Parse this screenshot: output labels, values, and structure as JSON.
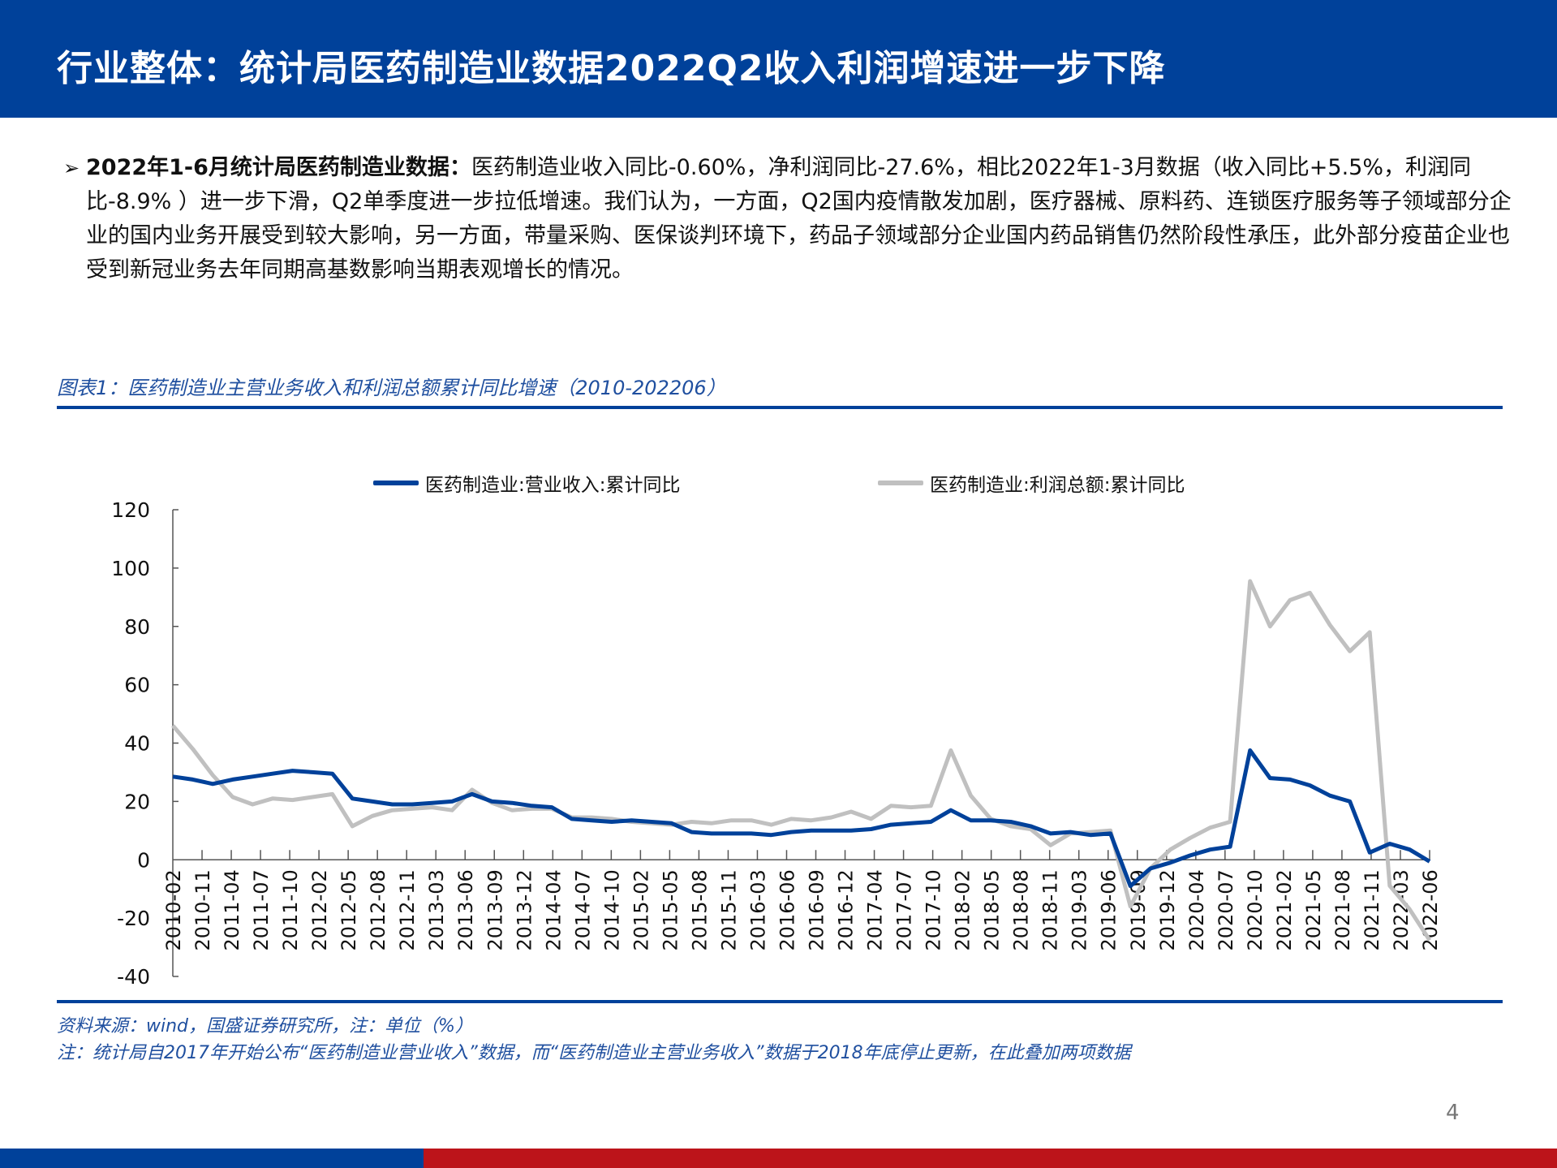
{
  "header": {
    "title": "行业整体：统计局医药制造业数据2022Q2收入利润增速进一步下降"
  },
  "bullet": {
    "marker": "➢",
    "bold_lead": "2022年1-6月统计局医药制造业数据：",
    "body": "医药制造业收入同比-0.60%，净利润同比-27.6%，相比2022年1-3月数据（收入同比+5.5%，利润同比-8.9% ）进一步下滑，Q2单季度进一步拉低增速。我们认为，一方面，Q2国内疫情散发加剧，医疗器械、原料药、连锁医疗服务等子领域部分企业的国内业务开展受到较大影响，另一方面，带量采购、医保谈判环境下，药品子领域部分企业国内药品销售仍然阶段性承压，此外部分疫苗企业也受到新冠业务去年同期高基数影响当期表观增长的情况。"
  },
  "figure": {
    "caption": "图表1：医药制造业主营业务收入和利润总额累计同比增速（2010-202206）",
    "source_line": "资料来源：wind，国盛证券研究所，注：单位（%）",
    "note_line": "注：统计局自2017年开始公布“医药制造业营业收入”数据，而“医药制造业主营业务收入”数据于2018年底停止更新，在此叠加两项数据"
  },
  "page_number": "4",
  "colors": {
    "brand_blue": "#00419a",
    "brand_red": "#bc141a",
    "revenue_line": "#00419a",
    "profit_line": "#c0c0c0"
  },
  "chart_data": {
    "type": "line",
    "title": "",
    "xlabel": "",
    "ylabel": "%",
    "ylim": [
      -40,
      120
    ],
    "yticks": [
      120,
      100,
      80,
      60,
      40,
      20,
      0,
      -20,
      -40
    ],
    "grid": false,
    "legend_position": "top",
    "x_tick_labels": [
      "2010-02",
      "2010-11",
      "2011-04",
      "2011-07",
      "2011-10",
      "2012-02",
      "2012-05",
      "2012-08",
      "2012-11",
      "2013-03",
      "2013-06",
      "2013-09",
      "2013-12",
      "2014-04",
      "2014-07",
      "2014-10",
      "2015-02",
      "2015-05",
      "2015-08",
      "2015-11",
      "2016-03",
      "2016-06",
      "2016-09",
      "2016-12",
      "2017-04",
      "2017-07",
      "2017-10",
      "2018-02",
      "2018-05",
      "2018-08",
      "2018-11",
      "2019-03",
      "2019-06",
      "2019-09",
      "2019-12",
      "2020-04",
      "2020-07",
      "2020-10",
      "2021-02",
      "2021-05",
      "2021-08",
      "2021-11",
      "2022-03",
      "2022-06"
    ],
    "series": [
      {
        "name": "医药制造业:营业收入:累计同比",
        "color": "#00419a",
        "values": [
          28.5,
          27.5,
          26.0,
          27.5,
          28.5,
          29.5,
          30.5,
          30.0,
          29.5,
          21.0,
          20.0,
          19.0,
          19.0,
          19.5,
          20.0,
          22.5,
          20.0,
          19.5,
          18.5,
          18.0,
          14.0,
          13.5,
          13.0,
          13.5,
          13.0,
          12.5,
          9.5,
          9.0,
          9.0,
          9.0,
          8.5,
          9.5,
          10.0,
          10.0,
          10.0,
          10.5,
          12.0,
          12.5,
          13.0,
          17.0,
          13.5,
          13.5,
          13.0,
          11.5,
          9.0,
          9.5,
          8.5,
          9.0,
          -9.0,
          -3.0,
          -1.0,
          1.5,
          3.5,
          4.5,
          37.5,
          28.0,
          27.5,
          25.5,
          22.0,
          20.0,
          2.5,
          5.5,
          3.5,
          -0.6
        ]
      },
      {
        "name": "医药制造业:利润总额:累计同比",
        "color": "#c0c0c0",
        "values": [
          46.0,
          38.0,
          29.0,
          21.5,
          19.0,
          21.0,
          20.5,
          21.5,
          22.5,
          11.5,
          15.0,
          17.0,
          17.5,
          18.0,
          17.0,
          24.0,
          19.5,
          17.0,
          17.5,
          17.5,
          14.5,
          14.5,
          14.0,
          13.0,
          12.5,
          12.0,
          13.0,
          12.5,
          13.5,
          13.5,
          12.0,
          14.0,
          13.5,
          14.5,
          16.5,
          14.0,
          18.5,
          18.0,
          18.5,
          37.5,
          22.0,
          14.0,
          11.5,
          10.5,
          5.0,
          9.0,
          9.5,
          10.0,
          -16.0,
          -3.0,
          3.5,
          7.5,
          11.0,
          13.0,
          95.5,
          80.0,
          89.0,
          91.5,
          80.5,
          71.5,
          78.0,
          -8.9,
          -17.0,
          -27.6
        ]
      }
    ],
    "annotations": []
  }
}
